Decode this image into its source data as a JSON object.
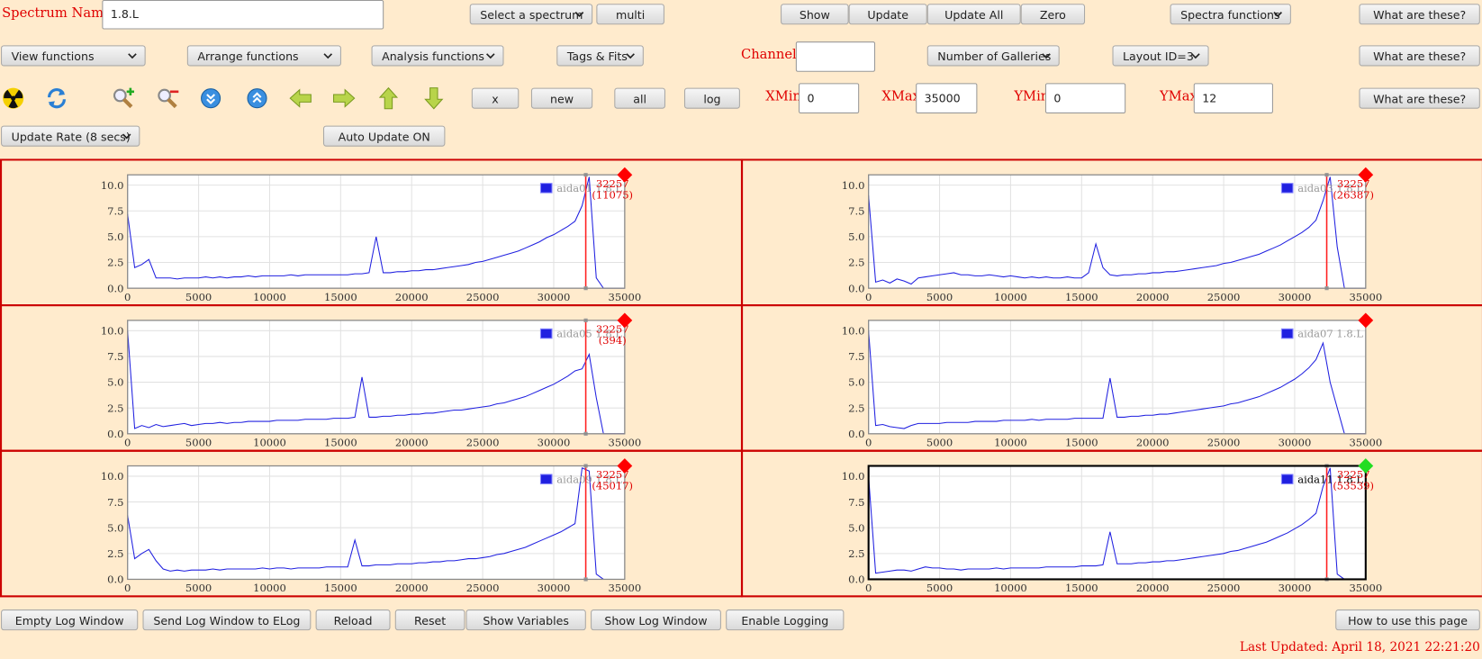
{
  "header": {
    "spectrum_name_label": "Spectrum Name:",
    "spectrum_name": "1.8.L",
    "channel_label": "Channel:",
    "xmin_label": "XMin",
    "xmin": 0,
    "xmax_label": "XMax",
    "xmax": 35000,
    "ymin_label": "YMin",
    "ymin": 0,
    "ymax_label": "YMax",
    "ymax": 12
  },
  "buttons": {
    "select_spectrum": "Select a spectrum",
    "multi": "multi",
    "show": "Show",
    "update": "Update",
    "update_all": "Update All",
    "zero": "Zero",
    "spectra_functions": "Spectra functions",
    "help": "What are these?",
    "view_functions": "View functions",
    "arrange_functions": "Arrange functions",
    "analysis_functions": "Analysis functions",
    "tags_fits": "Tags & Fits",
    "number_of_galleries": "Number of Galleries",
    "layout_id": "Layout ID=3",
    "x": "x",
    "new": "new",
    "all": "all",
    "log": "log",
    "update_rate": "Update Rate (8 secs)",
    "auto_update": "Auto Update ON"
  },
  "footer": {
    "buttons": [
      "Empty Log Window",
      "Send Log Window to ELog",
      "Reload",
      "Reset",
      "Show Variables",
      "Show Log Window",
      "Enable Logging",
      "How to use this page"
    ],
    "last_updated": "Last Updated: April 18, 2021 22:21:20"
  },
  "plot_axes": {
    "xlim": [
      0,
      35000
    ],
    "ylim": [
      0,
      11
    ],
    "xticks": [
      0,
      5000,
      10000,
      15000,
      20000,
      25000,
      30000,
      35000
    ],
    "yticks": [
      {
        "value": 0,
        "label": "0.0"
      },
      {
        "value": 2.5,
        "label": "2.5"
      },
      {
        "value": 5,
        "label": "5.0"
      },
      {
        "value": 7.5,
        "label": "7.5"
      },
      {
        "value": 10,
        "label": "10.0"
      }
    ],
    "x": [
      0,
      500,
      1000,
      1500,
      2000,
      2500,
      3000,
      3500,
      4000,
      4500,
      5000,
      5500,
      6000,
      6500,
      7000,
      7500,
      8000,
      8500,
      9000,
      9500,
      10000,
      10500,
      11000,
      11500,
      12000,
      12500,
      13000,
      13500,
      14000,
      14500,
      15000,
      15500,
      16000,
      16500,
      17000,
      17500,
      18000,
      18500,
      19000,
      19500,
      20000,
      20500,
      21000,
      21500,
      22000,
      22500,
      23000,
      23500,
      24000,
      24500,
      25000,
      25500,
      26000,
      26500,
      27000,
      27500,
      28000,
      28500,
      29000,
      29500,
      30000,
      30500,
      31000,
      31500,
      32000,
      32500,
      33000,
      33500,
      34000,
      34500,
      35000
    ]
  },
  "plots": [
    {
      "legend": "aida01 1.8.L",
      "color": "#2020e0",
      "channel": 32257,
      "count": "(11075)",
      "diamond_color": "#ff0000",
      "frame_color": "#888888",
      "legend_color": "#999999",
      "values": [
        7.2,
        2.0,
        2.3,
        2.8,
        1.0,
        1.0,
        1.0,
        0.9,
        1.0,
        1.0,
        1.0,
        1.1,
        1.0,
        1.1,
        1.0,
        1.1,
        1.1,
        1.2,
        1.1,
        1.2,
        1.2,
        1.2,
        1.2,
        1.3,
        1.2,
        1.3,
        1.3,
        1.3,
        1.3,
        1.3,
        1.3,
        1.3,
        1.4,
        1.4,
        1.5,
        5.0,
        1.5,
        1.5,
        1.6,
        1.6,
        1.7,
        1.7,
        1.8,
        1.8,
        1.9,
        2.0,
        2.1,
        2.2,
        2.3,
        2.5,
        2.6,
        2.8,
        3.0,
        3.2,
        3.4,
        3.6,
        3.9,
        4.2,
        4.5,
        4.9,
        5.2,
        5.6,
        6.0,
        6.5,
        8.0,
        10.8,
        1.0,
        0,
        0,
        0,
        0
      ]
    },
    {
      "legend": "aida03 1.8.L",
      "color": "#2020e0",
      "channel": 32257,
      "count": "(26387)",
      "diamond_color": "#ff0000",
      "frame_color": "#888888",
      "legend_color": "#999999",
      "values": [
        9.0,
        0.6,
        0.8,
        0.5,
        0.9,
        0.7,
        0.4,
        1.0,
        1.1,
        1.2,
        1.3,
        1.4,
        1.5,
        1.3,
        1.3,
        1.2,
        1.2,
        1.3,
        1.2,
        1.1,
        1.2,
        1.1,
        1.0,
        1.1,
        1.0,
        1.1,
        1.0,
        1.0,
        1.1,
        1.0,
        1.0,
        1.5,
        4.3,
        2.0,
        1.3,
        1.2,
        1.3,
        1.3,
        1.4,
        1.4,
        1.5,
        1.5,
        1.6,
        1.6,
        1.7,
        1.8,
        1.9,
        2.0,
        2.1,
        2.2,
        2.4,
        2.5,
        2.7,
        2.9,
        3.1,
        3.3,
        3.6,
        3.9,
        4.2,
        4.6,
        5.0,
        5.4,
        5.9,
        6.6,
        8.5,
        10.8,
        4.0,
        0,
        0,
        0,
        0
      ]
    },
    {
      "legend": "aida05 1.8.L",
      "color": "#2020e0",
      "channel": 32257,
      "count": "(394)",
      "diamond_color": "#ff0000",
      "frame_color": "#888888",
      "legend_color": "#999999",
      "values": [
        10.0,
        0.5,
        0.8,
        0.6,
        0.9,
        0.7,
        0.8,
        0.9,
        1.0,
        0.8,
        0.9,
        1.0,
        1.0,
        1.1,
        1.0,
        1.1,
        1.1,
        1.2,
        1.2,
        1.2,
        1.2,
        1.3,
        1.3,
        1.3,
        1.3,
        1.4,
        1.4,
        1.4,
        1.4,
        1.5,
        1.5,
        1.5,
        1.6,
        5.5,
        1.6,
        1.6,
        1.7,
        1.7,
        1.8,
        1.8,
        1.9,
        1.9,
        2.0,
        2.0,
        2.1,
        2.2,
        2.3,
        2.3,
        2.4,
        2.5,
        2.6,
        2.7,
        2.9,
        3.0,
        3.2,
        3.4,
        3.6,
        3.9,
        4.2,
        4.5,
        4.8,
        5.2,
        5.6,
        6.1,
        6.3,
        7.7,
        3.5,
        0,
        0,
        0,
        0
      ]
    },
    {
      "legend": "aida07 1.8.L",
      "color": "#2020e0",
      "diamond_color": "#ff0000",
      "frame_color": "#888888",
      "legend_color": "#999999",
      "values": [
        10.0,
        0.8,
        0.9,
        0.7,
        0.6,
        0.5,
        0.8,
        1.0,
        1.0,
        1.0,
        1.0,
        1.1,
        1.1,
        1.1,
        1.1,
        1.2,
        1.2,
        1.2,
        1.2,
        1.3,
        1.3,
        1.3,
        1.3,
        1.4,
        1.3,
        1.4,
        1.4,
        1.4,
        1.4,
        1.5,
        1.5,
        1.5,
        1.5,
        1.5,
        5.4,
        1.6,
        1.6,
        1.7,
        1.7,
        1.8,
        1.8,
        1.9,
        1.9,
        2.0,
        2.1,
        2.2,
        2.3,
        2.4,
        2.5,
        2.6,
        2.7,
        2.9,
        3.0,
        3.2,
        3.4,
        3.6,
        3.9,
        4.2,
        4.5,
        4.9,
        5.3,
        5.8,
        6.4,
        7.2,
        8.8,
        5.0,
        2.5,
        0,
        0,
        0,
        0
      ]
    },
    {
      "legend": "aida09 1.8.L",
      "color": "#2020e0",
      "channel": 32257,
      "count": "(45017)",
      "diamond_color": "#ff0000",
      "frame_color": "#888888",
      "legend_color": "#999999",
      "values": [
        6.2,
        2.0,
        2.5,
        2.9,
        1.8,
        1.0,
        0.8,
        0.9,
        0.8,
        0.9,
        0.9,
        0.9,
        1.0,
        0.9,
        1.0,
        1.0,
        1.0,
        1.0,
        1.0,
        1.1,
        1.0,
        1.1,
        1.1,
        1.0,
        1.1,
        1.1,
        1.1,
        1.1,
        1.2,
        1.2,
        1.2,
        1.2,
        3.8,
        1.3,
        1.3,
        1.4,
        1.4,
        1.4,
        1.5,
        1.5,
        1.5,
        1.6,
        1.6,
        1.7,
        1.7,
        1.8,
        1.8,
        1.9,
        2.0,
        2.0,
        2.1,
        2.2,
        2.4,
        2.5,
        2.7,
        2.9,
        3.1,
        3.4,
        3.7,
        4.0,
        4.3,
        4.6,
        5.0,
        5.4,
        10.8,
        10.5,
        0.5,
        0,
        0,
        0,
        0
      ]
    },
    {
      "legend": "aida11 1.8.L",
      "color": "#2020e0",
      "channel": 32257,
      "count": "(53539)",
      "diamond_color": "#22dd22",
      "frame_color": "#000000",
      "legend_color": "#000000",
      "values": [
        10.0,
        0.6,
        0.7,
        0.8,
        0.9,
        0.9,
        0.8,
        1.0,
        1.2,
        1.1,
        1.1,
        1.0,
        1.0,
        0.9,
        1.0,
        1.0,
        1.0,
        1.0,
        1.1,
        1.0,
        1.1,
        1.1,
        1.1,
        1.1,
        1.1,
        1.2,
        1.2,
        1.2,
        1.2,
        1.2,
        1.3,
        1.3,
        1.3,
        1.4,
        4.6,
        1.5,
        1.5,
        1.5,
        1.6,
        1.6,
        1.7,
        1.7,
        1.8,
        1.8,
        1.9,
        2.0,
        2.1,
        2.2,
        2.3,
        2.4,
        2.5,
        2.7,
        2.8,
        3.0,
        3.2,
        3.4,
        3.6,
        3.9,
        4.2,
        4.5,
        4.9,
        5.3,
        5.8,
        6.4,
        9.0,
        10.8,
        0.5,
        0,
        0,
        0,
        0
      ]
    }
  ]
}
